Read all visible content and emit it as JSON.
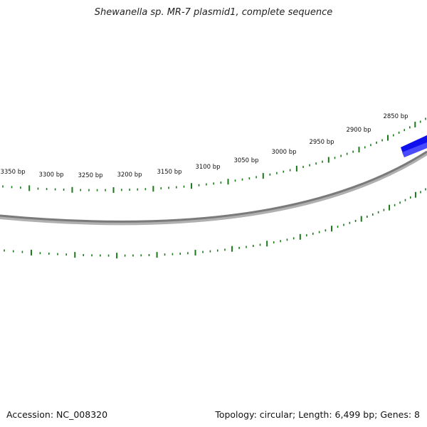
{
  "title": "Shewanella sp. MR-7 plasmid1, complete sequence",
  "footer": {
    "accession": "Accession: NC_008320",
    "summary": "Topology: circular; Length: 6,499 bp; Genes: 8"
  },
  "chart_data": {
    "type": "circular_plasmid_map_zoomed",
    "topology": "circular",
    "length_bp": 6499,
    "genes": 8,
    "visible_tick_labels": [
      "3350 bp",
      "3300 bp",
      "3250 bp",
      "3200 bp",
      "3150 bp",
      "3100 bp",
      "3050 bp",
      "3000 bp",
      "2950 bp",
      "2900 bp",
      "2850 bp"
    ],
    "visible_features": [
      {
        "type": "gene",
        "strand": "+",
        "color": "#1010ee",
        "partial": true
      }
    ],
    "colors": {
      "backbone": "#777777",
      "ticks": "#1a7a1a",
      "gene": "#1010ee"
    }
  }
}
